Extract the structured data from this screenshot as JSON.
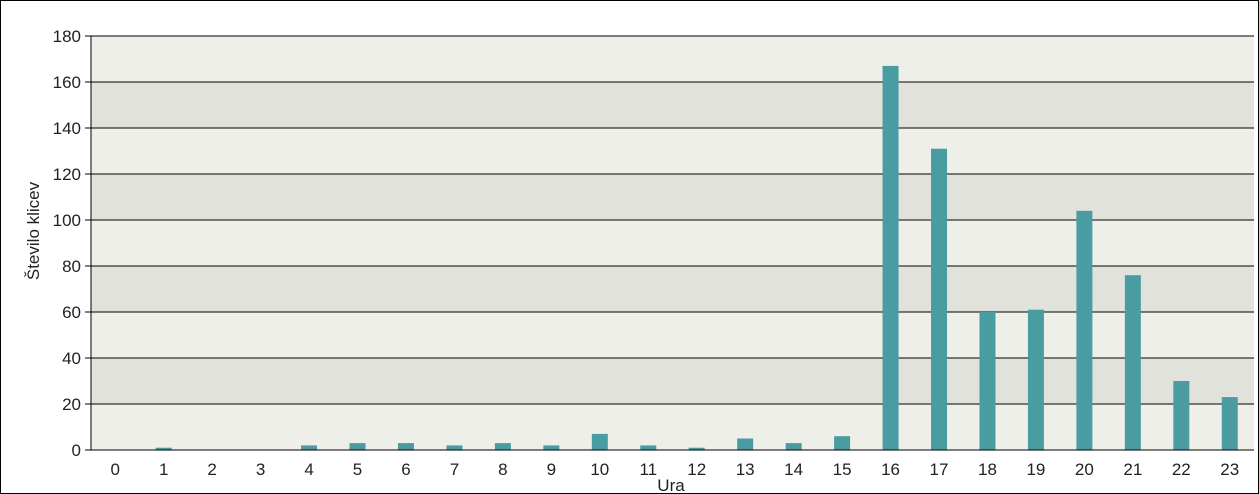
{
  "chart_data": {
    "type": "bar",
    "title": "",
    "xlabel": "Ura",
    "ylabel": "Število klicev",
    "categories": [
      "0",
      "1",
      "2",
      "3",
      "4",
      "5",
      "6",
      "7",
      "8",
      "9",
      "10",
      "11",
      "12",
      "13",
      "14",
      "15",
      "16",
      "17",
      "18",
      "19",
      "20",
      "21",
      "22",
      "23"
    ],
    "values": [
      0,
      1,
      0,
      0,
      2,
      3,
      3,
      2,
      3,
      2,
      7,
      2,
      1,
      5,
      3,
      6,
      167,
      131,
      60,
      61,
      104,
      76,
      30,
      23
    ],
    "ylim": [
      0,
      180
    ],
    "yticks": [
      0,
      20,
      40,
      60,
      80,
      100,
      120,
      140,
      160,
      180
    ],
    "grid": true,
    "legend": "none",
    "colors": {
      "bar": "#4a9ca3",
      "band_dark": "#e2e2dd",
      "band_light": "#efefea",
      "gridline": "#000000"
    }
  }
}
